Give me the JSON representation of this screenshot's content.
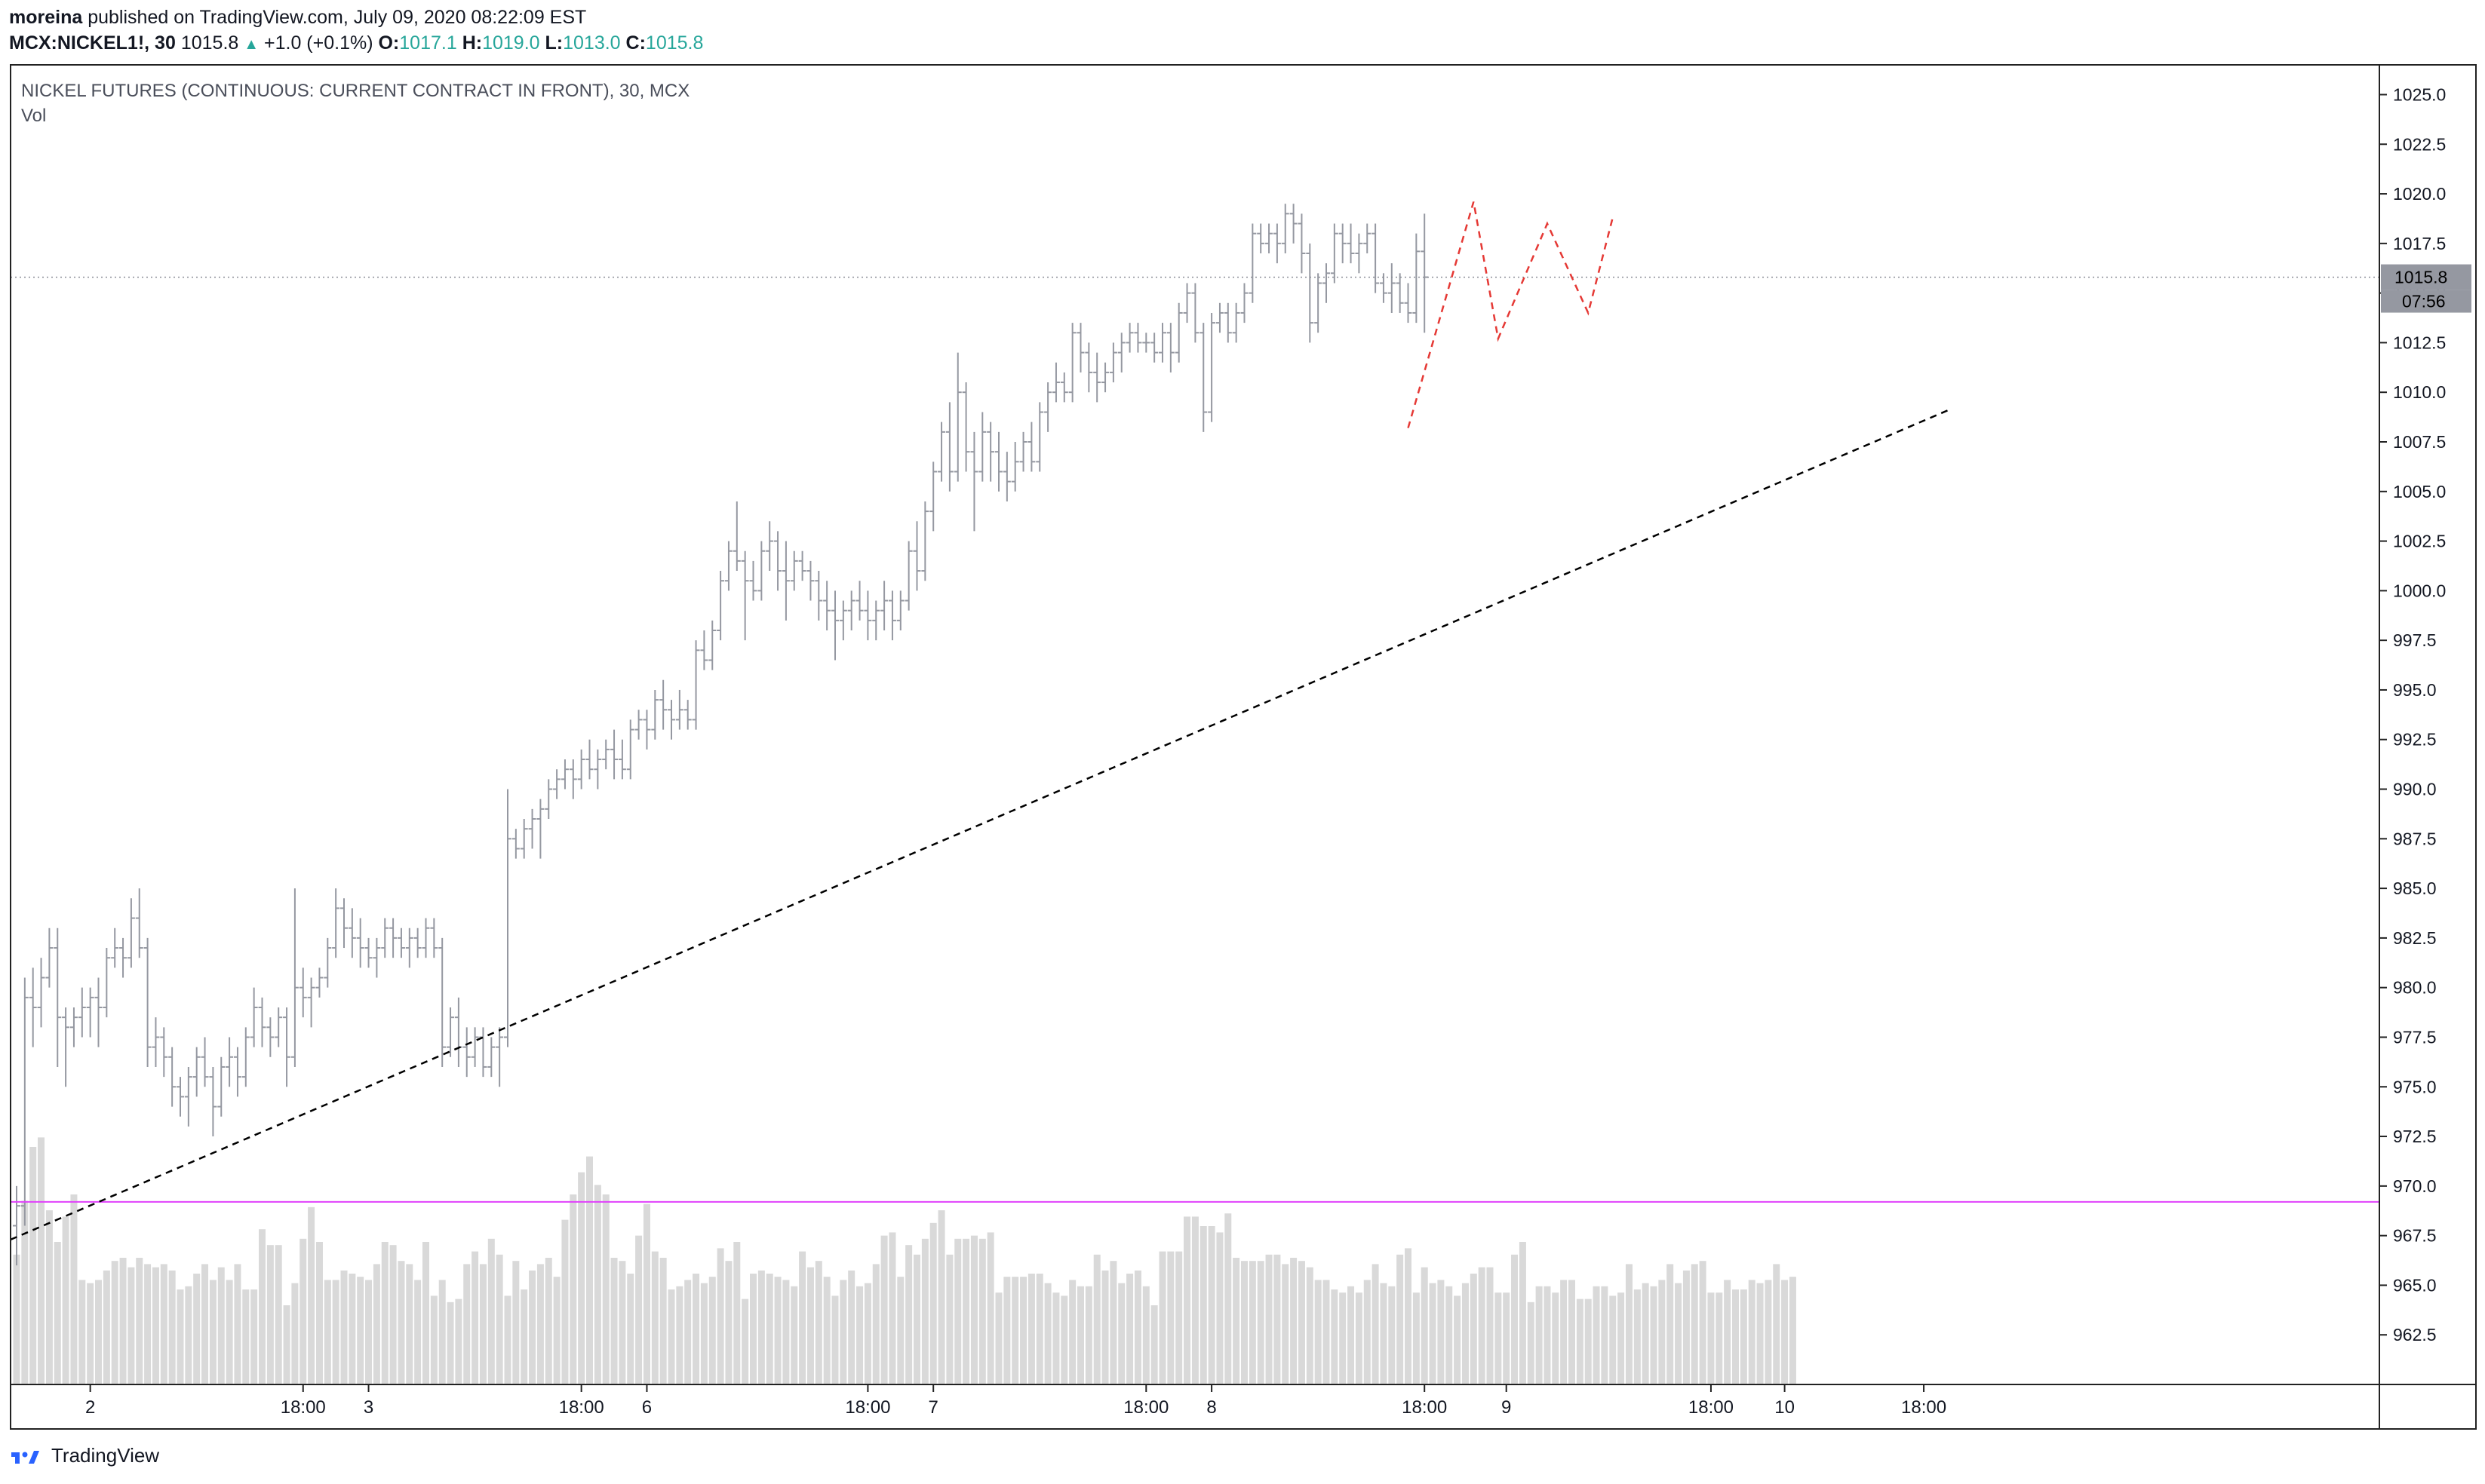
{
  "header": {
    "author": "moreina",
    "published_text": "published on TradingView.com, July 09, 2020 08:22:09 EST",
    "symbol": "MCX:NICKEL1!, 30",
    "last": "1015.8",
    "change": "+1.0 (+0.1%)",
    "o_label": "O:",
    "o_value": "1017.1",
    "h_label": "H:",
    "h_value": "1019.0",
    "l_label": "L:",
    "l_value": "1013.0",
    "c_label": "C:",
    "c_value": "1015.8"
  },
  "footer": {
    "brand": "TradingView",
    "logo_icon": "tradingview-logo-icon"
  },
  "chart_data": {
    "type": "ohlc",
    "title": "NICKEL FUTURES (CONTINUOUS: CURRENT CONTRACT IN FRONT), 30, MCX",
    "volume_label": "Vol",
    "ylim": [
      960,
      1026.5
    ],
    "y_ticks": [
      "962.5",
      "965.0",
      "967.5",
      "970.0",
      "972.5",
      "975.0",
      "977.5",
      "980.0",
      "982.5",
      "985.0",
      "987.5",
      "990.0",
      "992.5",
      "995.0",
      "997.5",
      "1000.0",
      "1002.5",
      "1005.0",
      "1007.5",
      "1010.0",
      "1012.5",
      "1015.0",
      "1017.5",
      "1020.0",
      "1022.5",
      "1025.0"
    ],
    "x_ticks": [
      {
        "label": "2",
        "bar": 9
      },
      {
        "label": "18:00",
        "bar": 35
      },
      {
        "label": "3",
        "bar": 43
      },
      {
        "label": "18:00",
        "bar": 69
      },
      {
        "label": "6",
        "bar": 77
      },
      {
        "label": "18:00",
        "bar": 104
      },
      {
        "label": "7",
        "bar": 112
      },
      {
        "label": "18:00",
        "bar": 138
      },
      {
        "label": "8",
        "bar": 146
      },
      {
        "label": "18:00",
        "bar": 172
      },
      {
        "label": "9",
        "bar": 182
      },
      {
        "label": "18:00",
        "bar": 207
      },
      {
        "label": "10",
        "bar": 216
      },
      {
        "label": "18:00",
        "bar": 233
      }
    ],
    "last_price_label": "1015.8",
    "countdown_label": "07:56",
    "last_price": 1015.8,
    "horizontal_line": 969.2,
    "trend_line": {
      "start": [
        0,
        967.3
      ],
      "end": [
        236,
        1009.1
      ]
    },
    "zigzag": [
      [
        170,
        1008.2
      ],
      [
        178,
        1019.6
      ],
      [
        181,
        1012.7
      ],
      [
        187,
        1018.5
      ],
      [
        192,
        1014.0
      ],
      [
        195,
        1018.8
      ]
    ],
    "colors": {
      "bar": "#9598a1",
      "volume": "#d9d9d9",
      "hline": "#e040fb",
      "trend": "#000000",
      "zigzag": "#e53935",
      "last_price_bg": "#9598a1"
    },
    "ohlc": [
      [
        968.0,
        970.0,
        966.0,
        969.0
      ],
      [
        969.0,
        980.5,
        968.0,
        979.5
      ],
      [
        979.5,
        981.0,
        977.0,
        979.0
      ],
      [
        979.0,
        981.5,
        978.0,
        980.5
      ],
      [
        980.5,
        983.0,
        980.0,
        982.0
      ],
      [
        982.0,
        983.0,
        976.0,
        978.5
      ],
      [
        978.5,
        979.0,
        975.0,
        978.0
      ],
      [
        978.0,
        979.0,
        977.0,
        978.5
      ],
      [
        978.5,
        980.0,
        977.5,
        979.0
      ],
      [
        979.0,
        980.0,
        977.5,
        979.5
      ],
      [
        979.5,
        980.5,
        977.0,
        979.0
      ],
      [
        979.0,
        982.0,
        978.5,
        981.5
      ],
      [
        981.5,
        983.0,
        981.0,
        982.0
      ],
      [
        982.0,
        982.5,
        980.5,
        981.5
      ],
      [
        981.5,
        984.5,
        981.0,
        983.5
      ],
      [
        983.5,
        985.0,
        981.5,
        982.0
      ],
      [
        982.0,
        982.5,
        976.0,
        977.0
      ],
      [
        977.0,
        978.5,
        976.0,
        977.5
      ],
      [
        977.5,
        978.0,
        975.5,
        976.5
      ],
      [
        976.5,
        977.0,
        974.0,
        975.0
      ],
      [
        975.0,
        975.5,
        973.5,
        974.5
      ],
      [
        974.5,
        976.0,
        973.0,
        975.5
      ],
      [
        975.5,
        977.0,
        974.5,
        976.5
      ],
      [
        976.5,
        977.5,
        975.0,
        975.5
      ],
      [
        975.5,
        976.0,
        972.5,
        974.0
      ],
      [
        974.0,
        976.5,
        973.5,
        976.0
      ],
      [
        976.0,
        977.5,
        975.0,
        976.5
      ],
      [
        976.5,
        977.0,
        974.5,
        975.5
      ],
      [
        975.5,
        978.0,
        975.0,
        977.5
      ],
      [
        977.5,
        980.0,
        977.0,
        979.0
      ],
      [
        979.0,
        979.5,
        977.0,
        978.0
      ],
      [
        978.0,
        978.5,
        976.5,
        977.5
      ],
      [
        977.5,
        979.0,
        977.0,
        978.5
      ],
      [
        978.5,
        979.0,
        975.0,
        976.5
      ],
      [
        976.5,
        985.0,
        976.0,
        980.0
      ],
      [
        980.0,
        981.0,
        978.5,
        979.5
      ],
      [
        979.5,
        980.5,
        978.0,
        980.0
      ],
      [
        980.0,
        981.0,
        979.5,
        980.5
      ],
      [
        980.5,
        982.5,
        980.0,
        982.0
      ],
      [
        982.0,
        985.0,
        981.5,
        984.0
      ],
      [
        984.0,
        984.5,
        982.0,
        983.0
      ],
      [
        983.0,
        984.0,
        981.5,
        982.5
      ],
      [
        982.5,
        983.5,
        981.0,
        982.0
      ],
      [
        982.0,
        982.5,
        981.0,
        981.5
      ],
      [
        981.5,
        982.5,
        980.5,
        982.0
      ],
      [
        982.0,
        983.5,
        981.5,
        983.0
      ],
      [
        983.0,
        983.5,
        981.5,
        982.5
      ],
      [
        982.5,
        983.0,
        981.5,
        982.0
      ],
      [
        982.0,
        983.0,
        981.0,
        982.5
      ],
      [
        982.5,
        983.0,
        981.5,
        982.0
      ],
      [
        982.0,
        983.5,
        981.5,
        983.0
      ],
      [
        983.0,
        983.5,
        981.5,
        982.0
      ],
      [
        982.0,
        982.5,
        976.0,
        977.0
      ],
      [
        977.0,
        979.0,
        976.5,
        978.5
      ],
      [
        978.5,
        979.5,
        976.0,
        977.0
      ],
      [
        977.0,
        978.0,
        975.5,
        976.5
      ],
      [
        976.5,
        978.0,
        976.0,
        977.5
      ],
      [
        977.5,
        978.0,
        975.5,
        976.0
      ],
      [
        976.0,
        977.5,
        975.5,
        977.0
      ],
      [
        977.0,
        978.0,
        975.0,
        977.5
      ],
      [
        977.5,
        990.0,
        977.0,
        987.5
      ],
      [
        987.5,
        988.0,
        986.5,
        987.0
      ],
      [
        987.0,
        988.5,
        986.5,
        988.0
      ],
      [
        988.0,
        989.0,
        987.0,
        988.5
      ],
      [
        988.5,
        989.5,
        986.5,
        989.0
      ],
      [
        989.0,
        990.5,
        988.5,
        990.0
      ],
      [
        990.0,
        991.0,
        989.5,
        990.5
      ],
      [
        990.5,
        991.5,
        990.0,
        991.0
      ],
      [
        991.0,
        991.5,
        989.5,
        990.5
      ],
      [
        990.5,
        992.0,
        990.0,
        991.5
      ],
      [
        991.5,
        992.5,
        990.5,
        991.0
      ],
      [
        991.0,
        992.0,
        990.0,
        991.5
      ],
      [
        991.5,
        992.5,
        991.0,
        992.0
      ],
      [
        992.0,
        993.0,
        990.5,
        991.5
      ],
      [
        991.5,
        992.5,
        990.5,
        991.0
      ],
      [
        991.0,
        993.5,
        990.5,
        993.0
      ],
      [
        993.0,
        994.0,
        992.5,
        993.5
      ],
      [
        993.5,
        994.0,
        992.0,
        993.0
      ],
      [
        993.0,
        995.0,
        992.5,
        994.5
      ],
      [
        994.5,
        995.5,
        993.0,
        994.0
      ],
      [
        994.0,
        994.5,
        992.5,
        993.5
      ],
      [
        993.5,
        995.0,
        993.0,
        994.0
      ],
      [
        994.0,
        994.5,
        993.0,
        993.5
      ],
      [
        993.5,
        997.5,
        993.0,
        997.0
      ],
      [
        997.0,
        998.0,
        996.0,
        996.5
      ],
      [
        996.5,
        998.5,
        996.0,
        998.0
      ],
      [
        998.0,
        1001.0,
        997.5,
        1000.5
      ],
      [
        1000.5,
        1002.5,
        1000.0,
        1002.0
      ],
      [
        1002.0,
        1004.5,
        1001.0,
        1001.5
      ],
      [
        1001.5,
        1002.0,
        997.5,
        1000.5
      ],
      [
        1000.5,
        1001.5,
        999.5,
        1000.0
      ],
      [
        1000.0,
        1002.5,
        999.5,
        1002.0
      ],
      [
        1002.0,
        1003.5,
        1001.0,
        1002.5
      ],
      [
        1002.5,
        1003.0,
        1000.0,
        1001.0
      ],
      [
        1001.0,
        1002.5,
        998.5,
        1000.5
      ],
      [
        1000.5,
        1002.0,
        1000.0,
        1001.5
      ],
      [
        1001.5,
        1002.0,
        1000.5,
        1001.0
      ],
      [
        1001.0,
        1001.5,
        999.5,
        1000.5
      ],
      [
        1000.5,
        1001.0,
        998.5,
        999.5
      ],
      [
        999.5,
        1000.5,
        998.0,
        999.0
      ],
      [
        999.0,
        1000.0,
        996.5,
        998.5
      ],
      [
        998.5,
        999.5,
        997.5,
        999.0
      ],
      [
        999.0,
        1000.0,
        998.0,
        999.5
      ],
      [
        999.5,
        1000.5,
        998.5,
        999.0
      ],
      [
        999.0,
        1000.0,
        997.5,
        998.5
      ],
      [
        998.5,
        999.5,
        997.5,
        999.0
      ],
      [
        999.0,
        1000.5,
        998.0,
        999.5
      ],
      [
        999.5,
        1000.0,
        997.5,
        998.5
      ],
      [
        998.5,
        1000.0,
        998.0,
        999.5
      ],
      [
        999.5,
        1002.5,
        999.0,
        1002.0
      ],
      [
        1002.0,
        1003.5,
        1000.0,
        1001.0
      ],
      [
        1001.0,
        1004.5,
        1000.5,
        1004.0
      ],
      [
        1004.0,
        1006.5,
        1003.0,
        1006.0
      ],
      [
        1006.0,
        1008.5,
        1005.5,
        1008.0
      ],
      [
        1008.0,
        1009.5,
        1005.0,
        1006.0
      ],
      [
        1006.0,
        1012.0,
        1005.5,
        1010.0
      ],
      [
        1010.0,
        1010.5,
        1006.0,
        1007.0
      ],
      [
        1007.0,
        1008.0,
        1003.0,
        1006.0
      ],
      [
        1006.0,
        1009.0,
        1005.5,
        1008.0
      ],
      [
        1008.0,
        1008.5,
        1005.5,
        1007.0
      ],
      [
        1007.0,
        1008.0,
        1005.0,
        1006.0
      ],
      [
        1006.0,
        1007.0,
        1004.5,
        1005.5
      ],
      [
        1005.5,
        1007.5,
        1005.0,
        1006.5
      ],
      [
        1006.5,
        1008.0,
        1006.0,
        1007.5
      ],
      [
        1007.5,
        1008.5,
        1006.0,
        1006.5
      ],
      [
        1006.5,
        1009.5,
        1006.0,
        1009.0
      ],
      [
        1009.0,
        1010.5,
        1008.0,
        1010.0
      ],
      [
        1010.0,
        1011.5,
        1009.5,
        1010.5
      ],
      [
        1010.5,
        1011.0,
        1009.5,
        1010.0
      ],
      [
        1010.0,
        1013.5,
        1009.5,
        1013.0
      ],
      [
        1013.0,
        1013.5,
        1011.0,
        1012.0
      ],
      [
        1012.0,
        1012.5,
        1010.0,
        1011.0
      ],
      [
        1011.0,
        1012.0,
        1009.5,
        1010.5
      ],
      [
        1010.5,
        1011.5,
        1010.0,
        1011.0
      ],
      [
        1011.0,
        1012.5,
        1010.5,
        1012.0
      ],
      [
        1012.0,
        1013.0,
        1011.0,
        1012.5
      ],
      [
        1012.5,
        1013.5,
        1012.0,
        1013.0
      ],
      [
        1013.0,
        1013.5,
        1012.0,
        1012.5
      ],
      [
        1012.5,
        1013.0,
        1012.0,
        1012.5
      ],
      [
        1012.5,
        1013.0,
        1011.5,
        1012.0
      ],
      [
        1012.0,
        1013.5,
        1011.5,
        1013.0
      ],
      [
        1013.0,
        1013.5,
        1011.0,
        1012.0
      ],
      [
        1012.0,
        1014.5,
        1011.5,
        1014.0
      ],
      [
        1014.0,
        1015.5,
        1013.5,
        1015.0
      ],
      [
        1015.0,
        1015.5,
        1012.5,
        1013.0
      ],
      [
        1013.0,
        1013.5,
        1008.0,
        1009.0
      ],
      [
        1009.0,
        1014.0,
        1008.5,
        1013.5
      ],
      [
        1013.5,
        1014.5,
        1013.0,
        1014.0
      ],
      [
        1014.0,
        1014.5,
        1012.5,
        1013.0
      ],
      [
        1013.0,
        1014.5,
        1012.5,
        1014.0
      ],
      [
        1014.0,
        1015.5,
        1013.5,
        1015.0
      ],
      [
        1015.0,
        1018.5,
        1014.5,
        1018.0
      ],
      [
        1018.0,
        1018.5,
        1017.0,
        1017.5
      ],
      [
        1017.5,
        1018.5,
        1017.0,
        1018.0
      ],
      [
        1018.0,
        1018.5,
        1016.5,
        1017.5
      ],
      [
        1017.5,
        1019.5,
        1017.0,
        1019.0
      ],
      [
        1019.0,
        1019.5,
        1017.5,
        1018.5
      ],
      [
        1018.5,
        1019.0,
        1016.0,
        1017.0
      ],
      [
        1017.0,
        1017.5,
        1012.5,
        1013.5
      ],
      [
        1013.5,
        1016.0,
        1013.0,
        1015.5
      ],
      [
        1015.5,
        1016.5,
        1014.5,
        1016.0
      ],
      [
        1016.0,
        1018.5,
        1015.5,
        1018.0
      ],
      [
        1018.0,
        1018.5,
        1016.5,
        1017.5
      ],
      [
        1017.5,
        1018.5,
        1016.5,
        1017.0
      ],
      [
        1017.0,
        1018.0,
        1016.0,
        1017.5
      ],
      [
        1017.5,
        1018.5,
        1017.0,
        1018.0
      ],
      [
        1018.0,
        1018.5,
        1015.0,
        1015.5
      ],
      [
        1015.5,
        1016.0,
        1014.5,
        1015.0
      ],
      [
        1015.0,
        1016.5,
        1014.0,
        1015.5
      ],
      [
        1015.5,
        1016.0,
        1014.0,
        1014.5
      ],
      [
        1014.5,
        1015.5,
        1013.5,
        1014.0
      ],
      [
        1014.0,
        1018.0,
        1013.5,
        1017.1
      ],
      [
        1017.1,
        1019.0,
        1013.0,
        1015.8
      ]
    ],
    "volume": [
      41,
      58,
      75,
      78,
      55,
      45,
      53,
      60,
      33,
      32,
      33,
      36,
      39,
      40,
      37,
      40,
      38,
      37,
      38,
      36,
      30,
      31,
      35,
      38,
      33,
      37,
      33,
      38,
      30,
      30,
      49,
      44,
      44,
      25,
      32,
      46,
      56,
      45,
      33,
      33,
      36,
      35,
      34,
      33,
      38,
      45,
      44,
      39,
      38,
      33,
      45,
      28,
      33,
      26,
      27,
      38,
      42,
      38,
      46,
      41,
      28,
      39,
      30,
      36,
      38,
      40,
      34,
      52,
      60,
      67,
      72,
      63,
      60,
      40,
      39,
      35,
      47,
      57,
      42,
      40,
      30,
      31,
      33,
      35,
      32,
      34,
      43,
      39,
      45,
      27,
      35,
      36,
      35,
      34,
      33,
      31,
      42,
      37,
      39,
      34,
      28,
      33,
      36,
      31,
      32,
      38,
      47,
      48,
      34,
      44,
      41,
      46,
      51,
      55,
      41,
      46,
      46,
      47,
      46,
      48,
      29,
      34,
      34,
      34,
      35,
      35,
      32,
      29,
      28,
      33,
      31,
      31,
      41,
      36,
      39,
      32,
      35,
      36,
      31,
      25,
      42,
      42,
      42,
      53,
      53,
      50,
      50,
      48,
      54,
      40,
      39,
      39,
      39,
      41,
      41,
      38,
      40,
      39,
      37,
      33,
      33,
      30,
      29,
      31,
      29,
      33,
      38,
      32,
      31,
      41,
      43,
      29,
      37,
      32,
      33,
      31,
      28,
      32,
      35,
      37,
      37,
      29,
      29,
      41,
      45,
      26,
      31,
      31,
      29,
      33,
      33,
      27,
      27,
      31,
      31,
      28,
      29,
      38,
      30,
      32,
      31,
      33,
      38,
      32,
      36,
      38,
      39,
      29,
      29,
      33,
      30,
      30,
      33,
      32,
      33,
      38,
      33,
      34
    ]
  }
}
